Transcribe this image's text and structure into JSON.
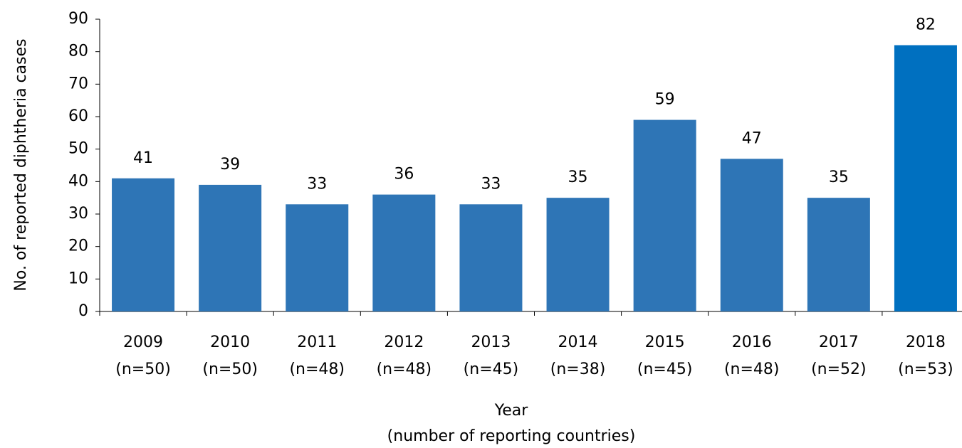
{
  "chart_data": {
    "type": "bar",
    "ylabel": "No. of reported diphtheria cases",
    "xlabel": "Year",
    "xlabel_note": "(number of reporting countries)",
    "categories": [
      "2009",
      "2010",
      "2011",
      "2012",
      "2013",
      "2014",
      "2015",
      "2016",
      "2017",
      "2018"
    ],
    "sample_sizes": [
      "(n=50)",
      "(n=50)",
      "(n=48)",
      "(n=48)",
      "(n=45)",
      "(n=38)",
      "(n=45)",
      "(n=48)",
      "(n=52)",
      "(n=53)"
    ],
    "values": [
      41,
      39,
      33,
      36,
      33,
      35,
      59,
      47,
      35,
      82
    ],
    "colors": [
      "#2e75b6",
      "#2e75b6",
      "#2e75b6",
      "#2e75b6",
      "#2e75b6",
      "#2e75b6",
      "#2e75b6",
      "#2e75b6",
      "#2e75b6",
      "#0070c0"
    ],
    "ylim": [
      0,
      90
    ],
    "yticks": [
      0,
      10,
      20,
      30,
      40,
      50,
      60,
      70,
      80,
      90
    ],
    "grid": false
  }
}
